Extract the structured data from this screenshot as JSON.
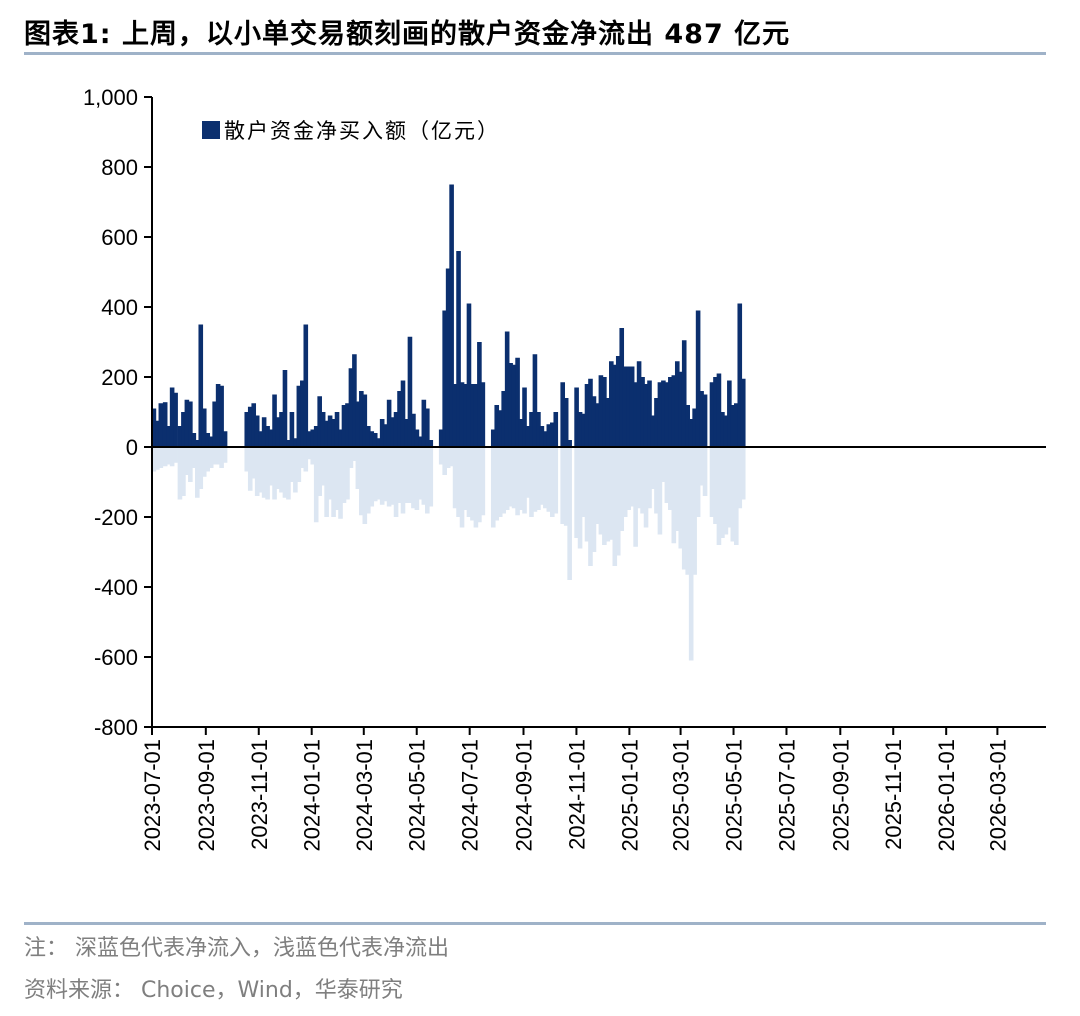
{
  "title": "图表1:  上周，以小单交易额刻画的散户资金净流出 487 亿元",
  "footnote": "注：  深蓝色代表净流入，浅蓝色代表净流出",
  "source": "资料来源：  Choice，Wind，华泰研究",
  "colors": {
    "inflow": "#0b2f6e",
    "outflow": "#dce6f2",
    "axis": "#000000",
    "rule": "#9fb2c8"
  },
  "chart_data": {
    "type": "bar",
    "series": [
      {
        "name": "散户资金净买入额（亿元）",
        "color": "#0b2f6e",
        "role": "inflow"
      }
    ],
    "ylim": [
      -800,
      1000
    ],
    "yticks": [
      1000,
      800,
      600,
      400,
      200,
      0,
      -200,
      -400,
      -600,
      -800
    ],
    "ytick_labels": [
      "1,000",
      "800",
      "600",
      "400",
      "200",
      "0",
      "-200",
      "-400",
      "-600",
      "-800"
    ],
    "xlim": [
      "2023-07-01",
      "2026-04-26"
    ],
    "xtick_labels": [
      "2023-07-01",
      "2023-09-01",
      "2023-11-01",
      "2024-01-01",
      "2024-03-01",
      "2024-05-01",
      "2024-07-01",
      "2024-09-01",
      "2024-11-01",
      "2025-01-01",
      "2025-03-01",
      "2025-05-01",
      "2025-07-01",
      "2025-09-01",
      "2025-11-01",
      "2026-01-01",
      "2026-03-01"
    ],
    "inflow": [
      [
        "2023-07-01",
        110
      ],
      [
        "2023-07-05",
        75
      ],
      [
        "2023-07-09",
        125
      ],
      [
        "2023-07-14",
        128
      ],
      [
        "2023-07-18",
        60
      ],
      [
        "2023-07-22",
        170
      ],
      [
        "2023-07-26",
        155
      ],
      [
        "2023-07-31",
        60
      ],
      [
        "2023-08-04",
        100
      ],
      [
        "2023-08-08",
        135
      ],
      [
        "2023-08-12",
        130
      ],
      [
        "2023-08-16",
        40
      ],
      [
        "2023-08-20",
        20
      ],
      [
        "2023-08-24",
        350
      ],
      [
        "2023-08-28",
        110
      ],
      [
        "2023-09-01",
        40
      ],
      [
        "2023-09-05",
        30
      ],
      [
        "2023-09-09",
        130
      ],
      [
        "2023-09-13",
        180
      ],
      [
        "2023-09-17",
        175
      ],
      [
        "2023-09-21",
        45
      ],
      [
        "2023-10-16",
        100
      ],
      [
        "2023-10-20",
        115
      ],
      [
        "2023-10-24",
        125
      ],
      [
        "2023-10-28",
        90
      ],
      [
        "2023-11-01",
        45
      ],
      [
        "2023-11-05",
        85
      ],
      [
        "2023-11-09",
        60
      ],
      [
        "2023-11-13",
        50
      ],
      [
        "2023-11-17",
        150
      ],
      [
        "2023-11-21",
        85
      ],
      [
        "2023-11-25",
        100
      ],
      [
        "2023-11-29",
        220
      ],
      [
        "2023-12-03",
        20
      ],
      [
        "2023-12-07",
        100
      ],
      [
        "2023-12-11",
        25
      ],
      [
        "2023-12-15",
        175
      ],
      [
        "2023-12-19",
        190
      ],
      [
        "2023-12-23",
        350
      ],
      [
        "2023-12-27",
        45
      ],
      [
        "2023-12-31",
        50
      ],
      [
        "2024-01-04",
        60
      ],
      [
        "2024-01-08",
        145
      ],
      [
        "2024-01-12",
        100
      ],
      [
        "2024-01-16",
        75
      ],
      [
        "2024-01-20",
        90
      ],
      [
        "2024-01-24",
        80
      ],
      [
        "2024-01-28",
        100
      ],
      [
        "2024-02-01",
        50
      ],
      [
        "2024-02-05",
        120
      ],
      [
        "2024-02-09",
        125
      ],
      [
        "2024-02-13",
        225
      ],
      [
        "2024-02-17",
        265
      ],
      [
        "2024-02-21",
        130
      ],
      [
        "2024-02-25",
        160
      ],
      [
        "2024-02-29",
        150
      ],
      [
        "2024-03-04",
        60
      ],
      [
        "2024-03-08",
        45
      ],
      [
        "2024-03-12",
        40
      ],
      [
        "2024-03-16",
        25
      ],
      [
        "2024-03-20",
        80
      ],
      [
        "2024-03-24",
        65
      ],
      [
        "2024-03-28",
        135
      ],
      [
        "2024-04-01",
        85
      ],
      [
        "2024-04-05",
        100
      ],
      [
        "2024-04-09",
        160
      ],
      [
        "2024-04-13",
        190
      ],
      [
        "2024-04-17",
        80
      ],
      [
        "2024-04-21",
        315
      ],
      [
        "2024-04-25",
        95
      ],
      [
        "2024-04-29",
        50
      ],
      [
        "2024-05-03",
        30
      ],
      [
        "2024-05-07",
        135
      ],
      [
        "2024-05-11",
        110
      ],
      [
        "2024-05-15",
        20
      ],
      [
        "2024-05-27",
        50
      ],
      [
        "2024-05-31",
        390
      ],
      [
        "2024-06-04",
        510
      ],
      [
        "2024-06-08",
        750
      ],
      [
        "2024-06-12",
        180
      ],
      [
        "2024-06-16",
        560
      ],
      [
        "2024-06-20",
        185
      ],
      [
        "2024-06-24",
        180
      ],
      [
        "2024-06-28",
        410
      ],
      [
        "2024-07-02",
        180
      ],
      [
        "2024-07-06",
        180
      ],
      [
        "2024-07-10",
        300
      ],
      [
        "2024-07-14",
        185
      ],
      [
        "2024-07-26",
        50
      ],
      [
        "2024-07-30",
        120
      ],
      [
        "2024-08-03",
        105
      ],
      [
        "2024-08-07",
        160
      ],
      [
        "2024-08-11",
        330
      ],
      [
        "2024-08-15",
        240
      ],
      [
        "2024-08-19",
        235
      ],
      [
        "2024-08-23",
        255
      ],
      [
        "2024-08-27",
        80
      ],
      [
        "2024-08-31",
        170
      ],
      [
        "2024-09-04",
        60
      ],
      [
        "2024-09-08",
        100
      ],
      [
        "2024-09-12",
        265
      ],
      [
        "2024-09-16",
        100
      ],
      [
        "2024-09-20",
        60
      ],
      [
        "2024-09-24",
        45
      ],
      [
        "2024-09-28",
        65
      ],
      [
        "2024-10-02",
        70
      ],
      [
        "2024-10-06",
        100
      ],
      [
        "2024-10-14",
        185
      ],
      [
        "2024-10-18",
        140
      ],
      [
        "2024-10-22",
        20
      ],
      [
        "2024-10-30",
        170
      ],
      [
        "2024-11-03",
        100
      ],
      [
        "2024-11-07",
        95
      ],
      [
        "2024-11-11",
        180
      ],
      [
        "2024-11-15",
        195
      ],
      [
        "2024-11-19",
        145
      ],
      [
        "2024-11-23",
        125
      ],
      [
        "2024-11-27",
        205
      ],
      [
        "2024-12-01",
        200
      ],
      [
        "2024-12-05",
        140
      ],
      [
        "2024-12-09",
        245
      ],
      [
        "2024-12-13",
        235
      ],
      [
        "2024-12-17",
        260
      ],
      [
        "2024-12-21",
        340
      ],
      [
        "2024-12-25",
        230
      ],
      [
        "2024-12-29",
        230
      ],
      [
        "2025-01-02",
        230
      ],
      [
        "2025-01-06",
        185
      ],
      [
        "2025-01-10",
        245
      ],
      [
        "2025-01-14",
        200
      ],
      [
        "2025-01-18",
        180
      ],
      [
        "2025-01-22",
        190
      ],
      [
        "2025-01-26",
        90
      ],
      [
        "2025-01-30",
        140
      ],
      [
        "2025-02-03",
        185
      ],
      [
        "2025-02-07",
        190
      ],
      [
        "2025-02-11",
        185
      ],
      [
        "2025-02-15",
        200
      ],
      [
        "2025-02-19",
        205
      ],
      [
        "2025-02-23",
        245
      ],
      [
        "2025-02-27",
        215
      ],
      [
        "2025-03-03",
        305
      ],
      [
        "2025-03-07",
        120
      ],
      [
        "2025-03-11",
        80
      ],
      [
        "2025-03-15",
        110
      ],
      [
        "2025-03-19",
        390
      ],
      [
        "2025-03-23",
        160
      ],
      [
        "2025-03-27",
        150
      ],
      [
        "2025-04-04",
        185
      ],
      [
        "2025-04-08",
        200
      ],
      [
        "2025-04-12",
        210
      ],
      [
        "2025-04-16",
        100
      ],
      [
        "2025-04-20",
        90
      ],
      [
        "2025-04-24",
        190
      ],
      [
        "2025-04-28",
        120
      ],
      [
        "2025-05-02",
        125
      ],
      [
        "2025-05-06",
        410
      ],
      [
        "2025-05-10",
        195
      ]
    ],
    "outflow": [
      [
        "2023-07-01",
        -70
      ],
      [
        "2023-07-05",
        -65
      ],
      [
        "2023-07-09",
        -60
      ],
      [
        "2023-07-14",
        -55
      ],
      [
        "2023-07-18",
        -50
      ],
      [
        "2023-07-22",
        -55
      ],
      [
        "2023-07-26",
        -45
      ],
      [
        "2023-07-31",
        -150
      ],
      [
        "2023-08-04",
        -140
      ],
      [
        "2023-08-08",
        -80
      ],
      [
        "2023-08-12",
        -100
      ],
      [
        "2023-08-16",
        -60
      ],
      [
        "2023-08-20",
        -145
      ],
      [
        "2023-08-24",
        -120
      ],
      [
        "2023-08-28",
        -85
      ],
      [
        "2023-09-01",
        -70
      ],
      [
        "2023-09-05",
        -60
      ],
      [
        "2023-09-09",
        -50
      ],
      [
        "2023-09-13",
        -50
      ],
      [
        "2023-09-17",
        -60
      ],
      [
        "2023-09-21",
        -45
      ],
      [
        "2023-10-16",
        -70
      ],
      [
        "2023-10-20",
        -125
      ],
      [
        "2023-10-24",
        -90
      ],
      [
        "2023-10-28",
        -140
      ],
      [
        "2023-11-01",
        -130
      ],
      [
        "2023-11-05",
        -145
      ],
      [
        "2023-11-09",
        -150
      ],
      [
        "2023-11-13",
        -110
      ],
      [
        "2023-11-17",
        -150
      ],
      [
        "2023-11-21",
        -120
      ],
      [
        "2023-11-25",
        -130
      ],
      [
        "2023-11-29",
        -145
      ],
      [
        "2023-12-03",
        -150
      ],
      [
        "2023-12-07",
        -100
      ],
      [
        "2023-12-11",
        -130
      ],
      [
        "2023-12-15",
        -100
      ],
      [
        "2023-12-19",
        -60
      ],
      [
        "2023-12-23",
        -70
      ],
      [
        "2023-12-27",
        -35
      ],
      [
        "2023-12-31",
        -50
      ],
      [
        "2024-01-04",
        -215
      ],
      [
        "2024-01-08",
        -140
      ],
      [
        "2024-01-12",
        -110
      ],
      [
        "2024-01-16",
        -200
      ],
      [
        "2024-01-20",
        -150
      ],
      [
        "2024-01-24",
        -200
      ],
      [
        "2024-01-28",
        -180
      ],
      [
        "2024-02-01",
        -205
      ],
      [
        "2024-02-05",
        -160
      ],
      [
        "2024-02-09",
        -150
      ],
      [
        "2024-02-13",
        -60
      ],
      [
        "2024-02-17",
        -40
      ],
      [
        "2024-02-21",
        -120
      ],
      [
        "2024-02-25",
        -195
      ],
      [
        "2024-02-29",
        -220
      ],
      [
        "2024-03-04",
        -190
      ],
      [
        "2024-03-08",
        -170
      ],
      [
        "2024-03-12",
        -155
      ],
      [
        "2024-03-16",
        -150
      ],
      [
        "2024-03-20",
        -165
      ],
      [
        "2024-03-24",
        -155
      ],
      [
        "2024-03-28",
        -170
      ],
      [
        "2024-04-01",
        -165
      ],
      [
        "2024-04-05",
        -200
      ],
      [
        "2024-04-09",
        -160
      ],
      [
        "2024-04-13",
        -190
      ],
      [
        "2024-04-17",
        -160
      ],
      [
        "2024-04-21",
        -160
      ],
      [
        "2024-04-25",
        -175
      ],
      [
        "2024-04-29",
        -180
      ],
      [
        "2024-05-03",
        -150
      ],
      [
        "2024-05-07",
        -165
      ],
      [
        "2024-05-11",
        -190
      ],
      [
        "2024-05-15",
        -170
      ],
      [
        "2024-05-27",
        -50
      ],
      [
        "2024-05-31",
        -80
      ],
      [
        "2024-06-04",
        -60
      ],
      [
        "2024-06-08",
        -55
      ],
      [
        "2024-06-12",
        -175
      ],
      [
        "2024-06-16",
        -200
      ],
      [
        "2024-06-20",
        -230
      ],
      [
        "2024-06-24",
        -180
      ],
      [
        "2024-06-28",
        -200
      ],
      [
        "2024-07-02",
        -210
      ],
      [
        "2024-07-06",
        -230
      ],
      [
        "2024-07-10",
        -215
      ],
      [
        "2024-07-14",
        -195
      ],
      [
        "2024-07-26",
        -230
      ],
      [
        "2024-07-30",
        -210
      ],
      [
        "2024-08-03",
        -200
      ],
      [
        "2024-08-07",
        -190
      ],
      [
        "2024-08-11",
        -180
      ],
      [
        "2024-08-15",
        -170
      ],
      [
        "2024-08-19",
        -175
      ],
      [
        "2024-08-23",
        -195
      ],
      [
        "2024-08-27",
        -180
      ],
      [
        "2024-08-31",
        -190
      ],
      [
        "2024-09-04",
        -145
      ],
      [
        "2024-09-08",
        -200
      ],
      [
        "2024-09-12",
        -185
      ],
      [
        "2024-09-16",
        -180
      ],
      [
        "2024-09-20",
        -165
      ],
      [
        "2024-09-24",
        -175
      ],
      [
        "2024-09-28",
        -185
      ],
      [
        "2024-10-02",
        -200
      ],
      [
        "2024-10-06",
        -190
      ],
      [
        "2024-10-14",
        -220
      ],
      [
        "2024-10-18",
        -225
      ],
      [
        "2024-10-22",
        -380
      ],
      [
        "2024-10-30",
        -260
      ],
      [
        "2024-11-03",
        -290
      ],
      [
        "2024-11-07",
        -200
      ],
      [
        "2024-11-11",
        -270
      ],
      [
        "2024-11-15",
        -340
      ],
      [
        "2024-11-19",
        -300
      ],
      [
        "2024-11-23",
        -220
      ],
      [
        "2024-11-27",
        -250
      ],
      [
        "2024-12-01",
        -280
      ],
      [
        "2024-12-05",
        -270
      ],
      [
        "2024-12-09",
        -265
      ],
      [
        "2024-12-13",
        -340
      ],
      [
        "2024-12-17",
        -310
      ],
      [
        "2024-12-21",
        -240
      ],
      [
        "2024-12-25",
        -200
      ],
      [
        "2024-12-29",
        -180
      ],
      [
        "2025-01-02",
        -170
      ],
      [
        "2025-01-06",
        -285
      ],
      [
        "2025-01-10",
        -175
      ],
      [
        "2025-01-14",
        -190
      ],
      [
        "2025-01-18",
        -230
      ],
      [
        "2025-01-22",
        -175
      ],
      [
        "2025-01-26",
        -120
      ],
      [
        "2025-01-30",
        -190
      ],
      [
        "2025-02-03",
        -250
      ],
      [
        "2025-02-07",
        -100
      ],
      [
        "2025-02-11",
        -160
      ],
      [
        "2025-02-15",
        -180
      ],
      [
        "2025-02-19",
        -275
      ],
      [
        "2025-02-23",
        -240
      ],
      [
        "2025-02-27",
        -290
      ],
      [
        "2025-03-03",
        -350
      ],
      [
        "2025-03-07",
        -365
      ],
      [
        "2025-03-11",
        -610
      ],
      [
        "2025-03-15",
        -365
      ],
      [
        "2025-03-19",
        -200
      ],
      [
        "2025-03-23",
        -110
      ],
      [
        "2025-03-27",
        -140
      ],
      [
        "2025-04-04",
        -200
      ],
      [
        "2025-04-08",
        -220
      ],
      [
        "2025-04-12",
        -280
      ],
      [
        "2025-04-16",
        -260
      ],
      [
        "2025-04-20",
        -250
      ],
      [
        "2025-04-24",
        -230
      ],
      [
        "2025-04-28",
        -270
      ],
      [
        "2025-05-02",
        -280
      ],
      [
        "2025-05-06",
        -175
      ],
      [
        "2025-05-10",
        -150
      ]
    ]
  }
}
